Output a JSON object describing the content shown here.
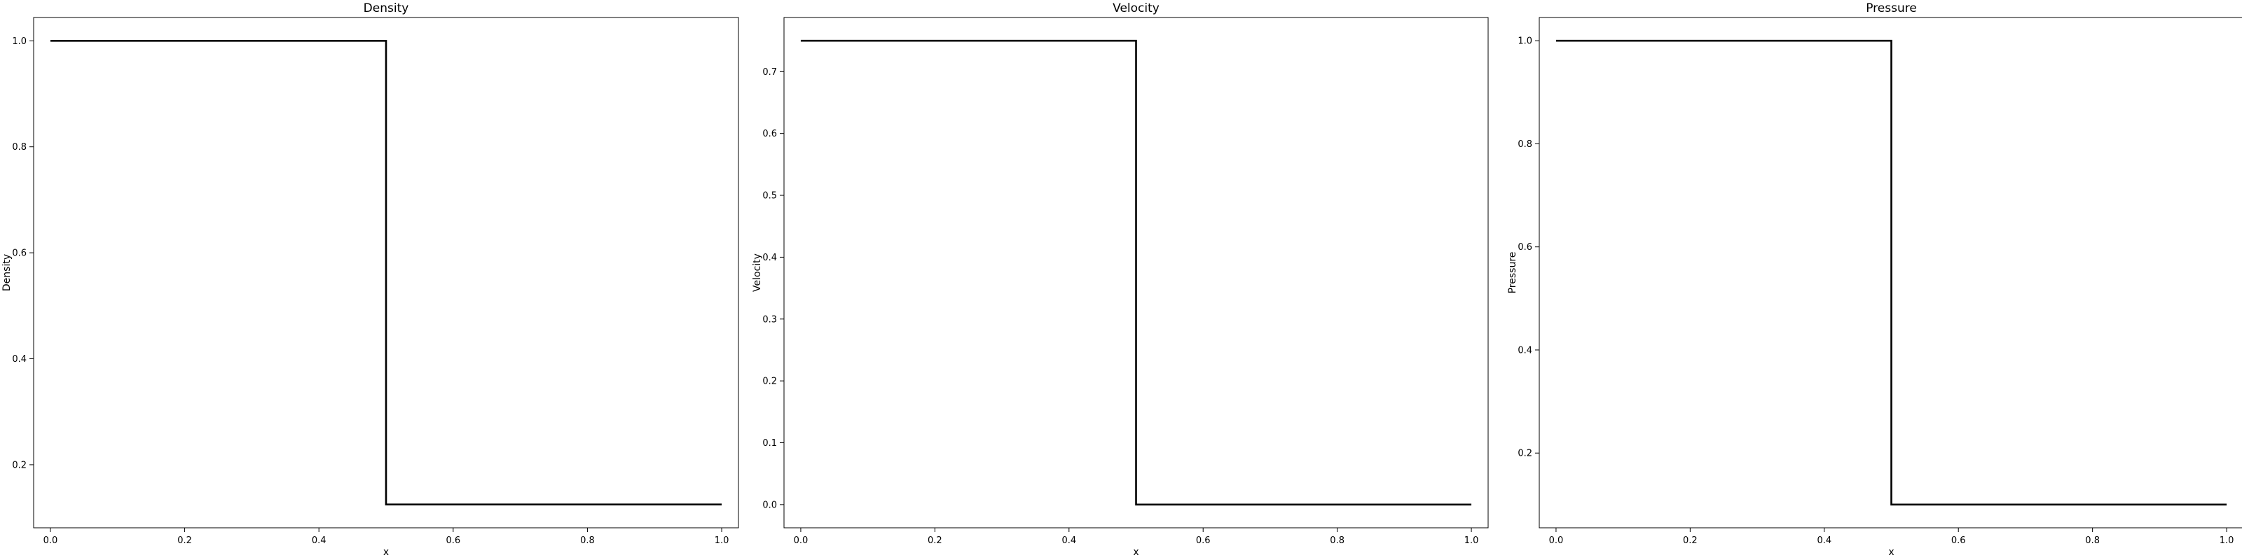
{
  "chart_data": [
    {
      "type": "line",
      "title": "Density",
      "xlabel": "x",
      "ylabel": "Density",
      "xlim": [
        -0.025,
        1.025
      ],
      "ylim": [
        0.081,
        1.044
      ],
      "xticks": [
        0.0,
        0.2,
        0.4,
        0.6,
        0.8,
        1.0
      ],
      "xtick_labels": [
        "0.0",
        "0.2",
        "0.4",
        "0.6",
        "0.8",
        "1.0"
      ],
      "yticks": [
        0.2,
        0.4,
        0.6,
        0.8,
        1.0
      ],
      "ytick_labels": [
        "0.2",
        "0.4",
        "0.6",
        "0.8",
        "1.0"
      ],
      "grid": false,
      "line_color": "#000000",
      "series": [
        {
          "x": [
            0.0,
            0.5,
            0.5,
            1.0
          ],
          "y": [
            1.0,
            1.0,
            0.125,
            0.125
          ]
        }
      ]
    },
    {
      "type": "line",
      "title": "Velocity",
      "xlabel": "x",
      "ylabel": "Velocity",
      "xlim": [
        -0.025,
        1.025
      ],
      "ylim": [
        -0.0375,
        0.7875
      ],
      "xticks": [
        0.0,
        0.2,
        0.4,
        0.6,
        0.8,
        1.0
      ],
      "xtick_labels": [
        "0.0",
        "0.2",
        "0.4",
        "0.6",
        "0.8",
        "1.0"
      ],
      "yticks": [
        0.0,
        0.1,
        0.2,
        0.3,
        0.4,
        0.5,
        0.6,
        0.7
      ],
      "ytick_labels": [
        "0.0",
        "0.1",
        "0.2",
        "0.3",
        "0.4",
        "0.5",
        "0.6",
        "0.7"
      ],
      "grid": false,
      "line_color": "#000000",
      "series": [
        {
          "x": [
            0.0,
            0.5,
            0.5,
            1.0
          ],
          "y": [
            0.75,
            0.75,
            0.0,
            0.0
          ]
        }
      ]
    },
    {
      "type": "line",
      "title": "Pressure",
      "xlabel": "x",
      "ylabel": "Pressure",
      "xlim": [
        -0.025,
        1.025
      ],
      "ylim": [
        0.055,
        1.045
      ],
      "xticks": [
        0.0,
        0.2,
        0.4,
        0.6,
        0.8,
        1.0
      ],
      "xtick_labels": [
        "0.0",
        "0.2",
        "0.4",
        "0.6",
        "0.8",
        "1.0"
      ],
      "yticks": [
        0.2,
        0.4,
        0.6,
        0.8,
        1.0
      ],
      "ytick_labels": [
        "0.2",
        "0.4",
        "0.6",
        "0.8",
        "1.0"
      ],
      "grid": false,
      "line_color": "#000000",
      "series": [
        {
          "x": [
            0.0,
            0.5,
            0.5,
            1.0
          ],
          "y": [
            1.0,
            1.0,
            0.1,
            0.1
          ]
        }
      ]
    }
  ]
}
